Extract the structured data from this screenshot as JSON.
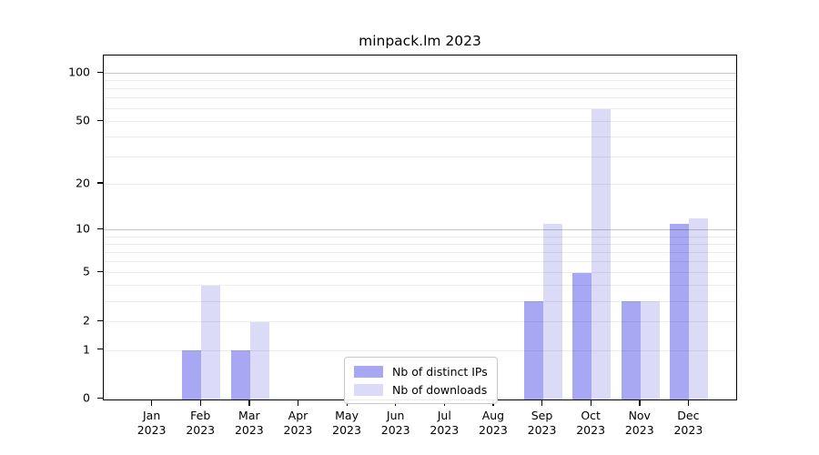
{
  "chart_data": {
    "type": "bar",
    "title": "minpack.lm 2023",
    "categories": [
      "Jan",
      "Feb",
      "Mar",
      "Apr",
      "May",
      "Jun",
      "Jul",
      "Aug",
      "Sep",
      "Oct",
      "Nov",
      "Dec"
    ],
    "category_year": "2023",
    "series": [
      {
        "name": "Nb of distinct IPs",
        "color": "#a7a7f3",
        "values": [
          0,
          1,
          1,
          0,
          0,
          0,
          0,
          0,
          3,
          5,
          3,
          11
        ]
      },
      {
        "name": "Nb of downloads",
        "color": "#dbdbf8",
        "values": [
          0,
          4,
          2,
          0,
          0,
          0,
          0,
          0,
          11,
          60,
          3,
          12
        ]
      }
    ],
    "yscale": "log1p",
    "ylim": [
      0,
      128
    ],
    "yticks": [
      0,
      1,
      2,
      5,
      10,
      20,
      50,
      100
    ],
    "gridlines": {
      "minor": [
        1,
        2,
        3,
        4,
        5,
        6,
        7,
        8,
        9,
        20,
        30,
        40,
        50,
        60,
        70,
        80,
        90
      ],
      "major": [
        10,
        100
      ]
    },
    "grid": true,
    "legend_position": "lower center"
  }
}
